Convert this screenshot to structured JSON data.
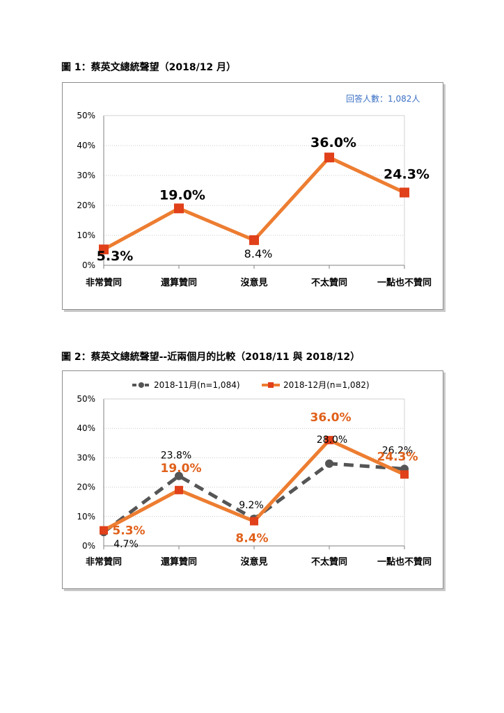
{
  "figure1": {
    "title": "圖 1：蔡英文總統聲望（2018/12 月）",
    "respondents": "回答人數：1,082人"
  },
  "figure2": {
    "title": "圖 2：蔡英文總統聲望--近兩個月的比較（2018/11 與 2018/12）"
  },
  "chart_data": [
    {
      "type": "line",
      "title": "圖 1：蔡英文總統聲望（2018/12 月）",
      "categories": [
        "非常贊同",
        "還算贊同",
        "沒意見",
        "不太贊同",
        "一點也不贊同"
      ],
      "y_ticks": [
        "0%",
        "10%",
        "20%",
        "30%",
        "40%",
        "50%"
      ],
      "ylim": [
        0,
        50
      ],
      "grid": true,
      "series": [
        {
          "values": [
            5.3,
            19.0,
            8.4,
            36.0,
            24.3
          ],
          "labels": [
            "5.3%",
            "19.0%",
            "8.4%",
            "36.0%",
            "24.3%"
          ],
          "color": "#ed7d31",
          "marker_color": "#e0401a"
        }
      ],
      "annotation": "回答人數：1,082人"
    },
    {
      "type": "line",
      "title": "圖 2：蔡英文總統聲望--近兩個月的比較（2018/11 與 2018/12）",
      "categories": [
        "非常贊同",
        "還算贊同",
        "沒意見",
        "不太贊同",
        "一點也不贊同"
      ],
      "y_ticks": [
        "0%",
        "10%",
        "20%",
        "30%",
        "40%",
        "50%"
      ],
      "ylim": [
        0,
        50
      ],
      "grid": true,
      "legend_position": "top",
      "series": [
        {
          "name": "2018-11月(n=1,084)",
          "values": [
            4.7,
            23.8,
            9.2,
            28.0,
            26.2
          ],
          "labels": [
            "4.7%",
            "23.8%",
            "9.2%",
            "28.0%",
            "26.2%"
          ],
          "color": "#555555",
          "style": "dashed"
        },
        {
          "name": "2018-12月(n=1,082)",
          "values": [
            5.3,
            19.0,
            8.4,
            36.0,
            24.3
          ],
          "labels": [
            "5.3%",
            "19.0%",
            "8.4%",
            "36.0%",
            "24.3%"
          ],
          "color": "#ed7d31",
          "marker_color": "#e0401a",
          "style": "solid"
        }
      ]
    }
  ]
}
